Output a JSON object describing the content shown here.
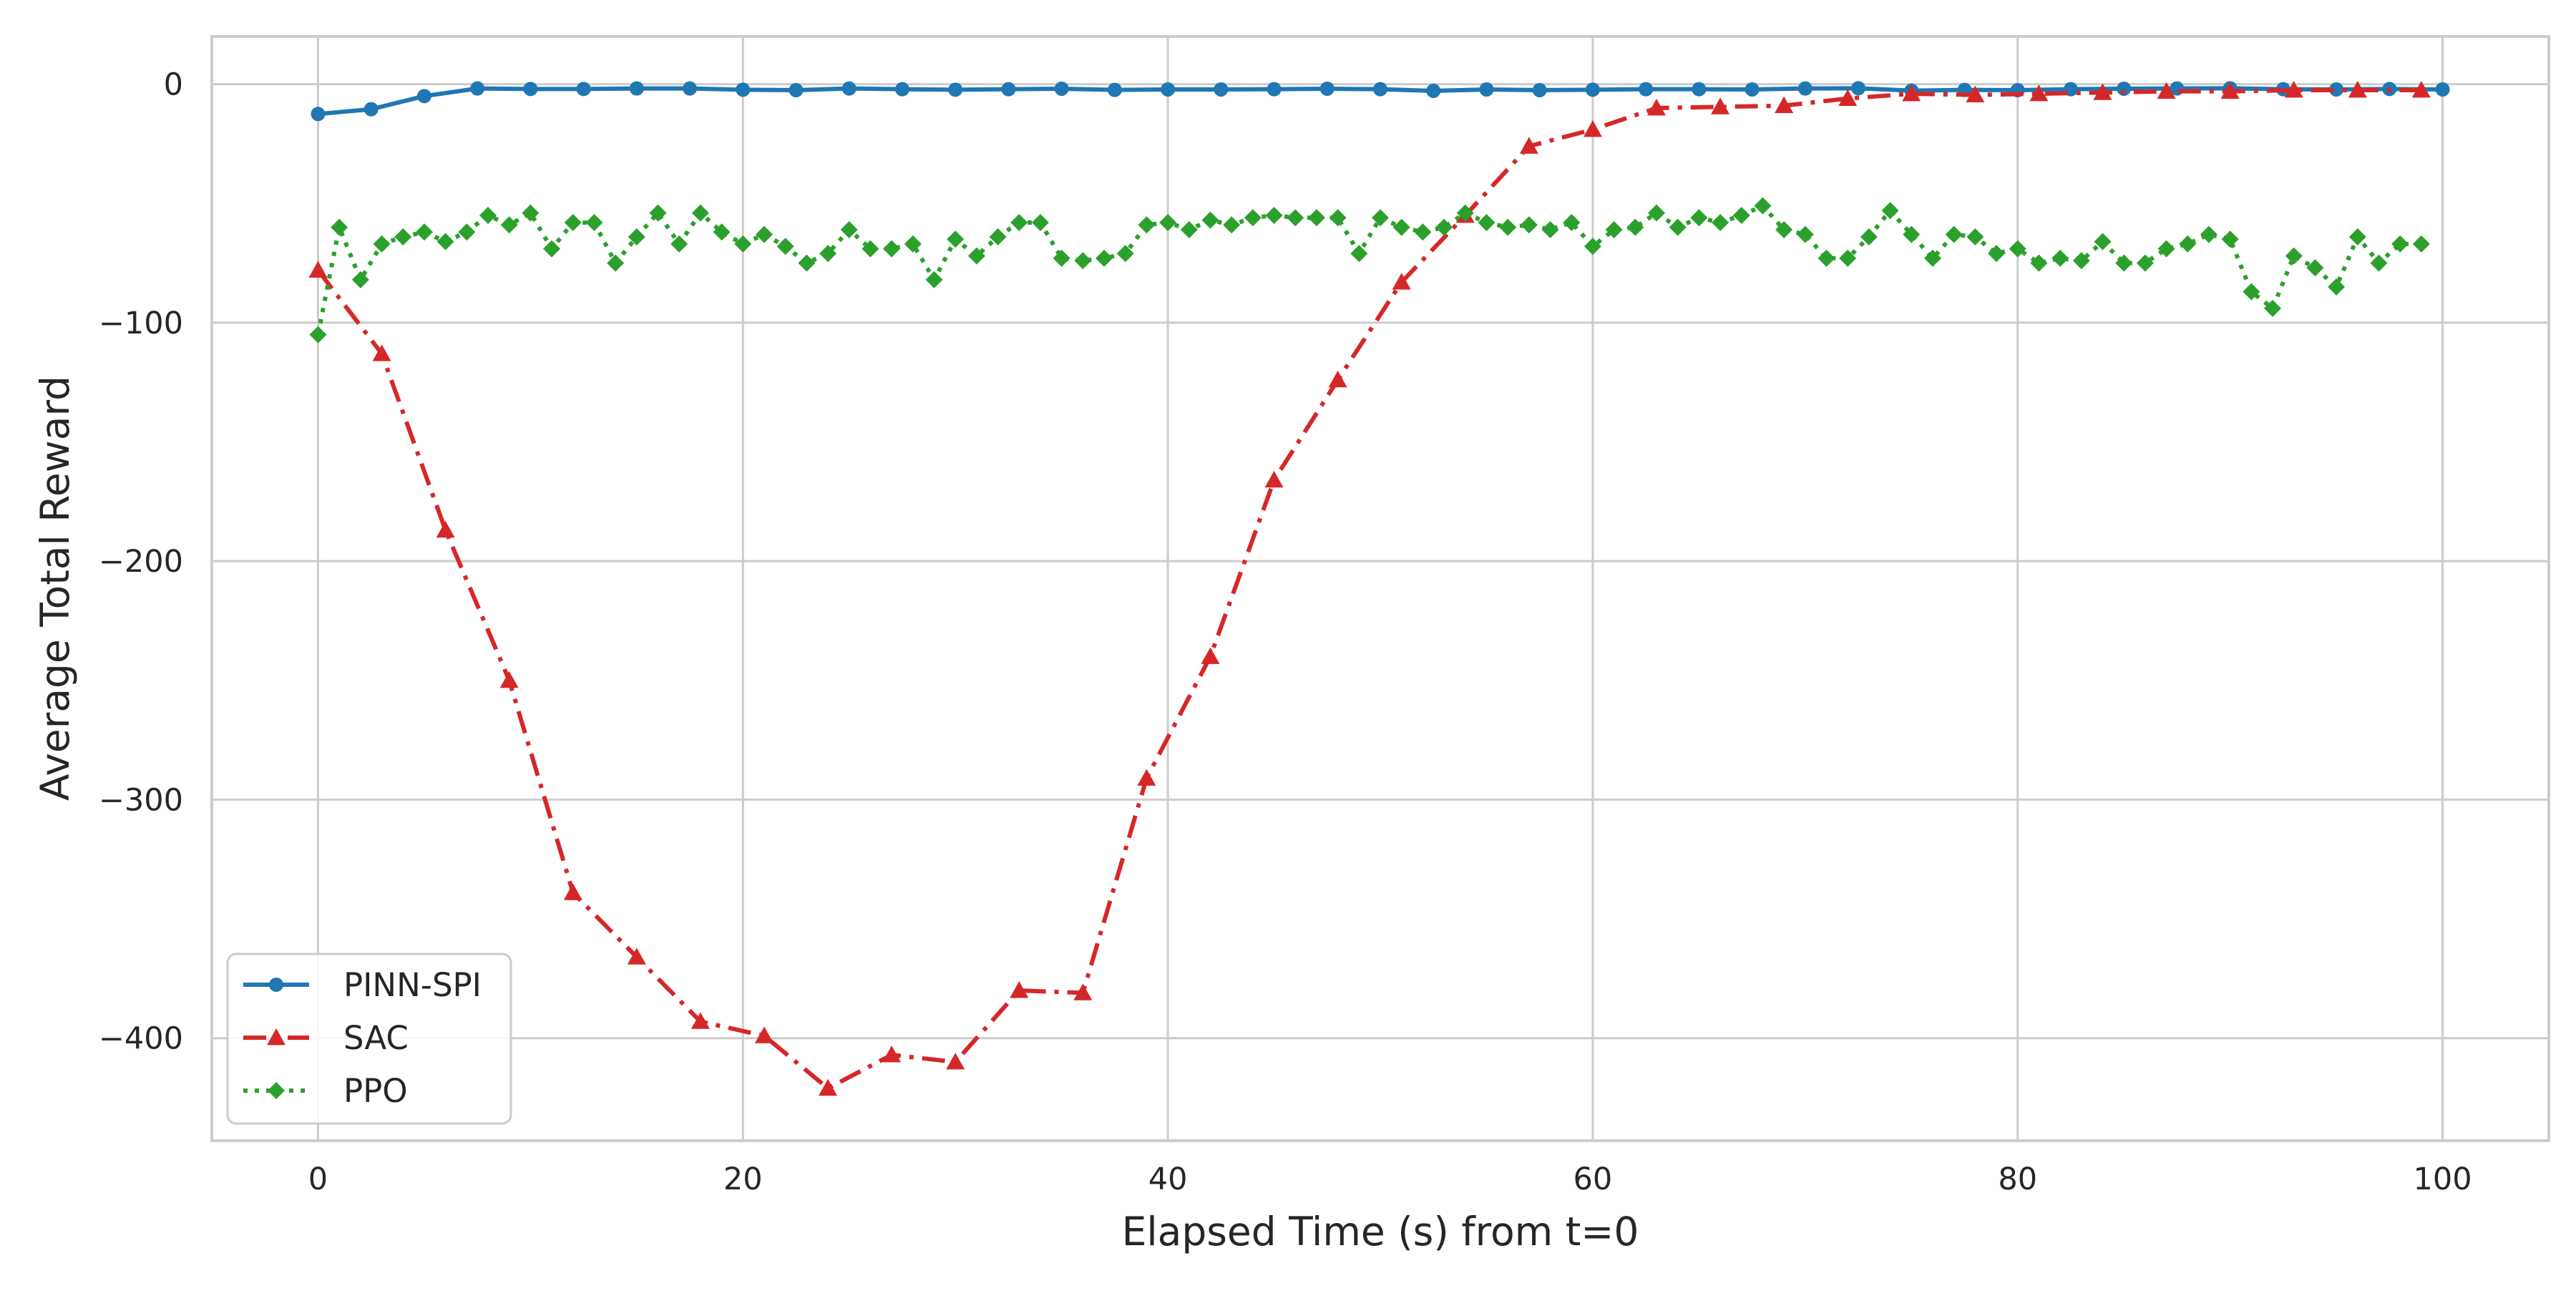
{
  "chart_data": {
    "type": "line",
    "title": "",
    "xlabel": "Elapsed Time (s) from t=0",
    "ylabel": "Average Total Reward",
    "xlim": [
      -5,
      105
    ],
    "ylim": [
      -443,
      20
    ],
    "xticks": [
      0,
      20,
      40,
      60,
      80,
      100
    ],
    "yticks": [
      0,
      -100,
      -200,
      -300,
      -400
    ],
    "xtick_labels": [
      "0",
      "20",
      "40",
      "60",
      "80",
      "100"
    ],
    "ytick_labels": [
      "0",
      "−100",
      "−200",
      "−300",
      "−400"
    ],
    "grid": true,
    "legend_position": "bottom-left",
    "series": [
      {
        "name": "PINN-SPI",
        "color": "#1f77b4",
        "line_style": "solid",
        "marker": "circle",
        "x": [
          0,
          2.5,
          5,
          7.5,
          10,
          12.5,
          15,
          17.5,
          20,
          22.5,
          25,
          27.5,
          30,
          32.5,
          35,
          37.5,
          40,
          42.5,
          45,
          47.5,
          50,
          52.5,
          55,
          57.5,
          60,
          62.5,
          65,
          67.5,
          70,
          72.5,
          75,
          77.5,
          80,
          82.5,
          85,
          87.5,
          90,
          92.5,
          95,
          97.5,
          100
        ],
        "y": [
          -12.5,
          -10.5,
          -5,
          -1.8,
          -2,
          -2,
          -1.8,
          -1.8,
          -2.3,
          -2.5,
          -1.8,
          -2.1,
          -2.3,
          -2.1,
          -1.9,
          -2.4,
          -2.2,
          -2.2,
          -2.1,
          -1.9,
          -2.1,
          -2.8,
          -2.2,
          -2.5,
          -2.3,
          -2.1,
          -2.1,
          -2.2,
          -1.8,
          -1.7,
          -2.7,
          -2.4,
          -2.5,
          -2.1,
          -1.9,
          -1.8,
          -1.7,
          -2.1,
          -2.2,
          -2,
          -2.2
        ]
      },
      {
        "name": "SAC",
        "color": "#d62728",
        "line_style": "dashdot",
        "marker": "triangle",
        "x": [
          0,
          3,
          6,
          9,
          12,
          15,
          18,
          21,
          24,
          27,
          30,
          33,
          36,
          39,
          42,
          45,
          48,
          51,
          54,
          57,
          60,
          63,
          66,
          69,
          72,
          75,
          78,
          81,
          84,
          87,
          90,
          93,
          96,
          99
        ],
        "y": [
          -78,
          -113,
          -187,
          -250,
          -339,
          -366,
          -393,
          -399,
          -421,
          -407,
          -410,
          -380,
          -381,
          -291,
          -240,
          -166,
          -124,
          -83,
          -55,
          -26,
          -19,
          -10,
          -9.5,
          -9,
          -6,
          -4,
          -4.5,
          -4,
          -3.5,
          -3,
          -3,
          -2.5,
          -2.5,
          -2.5
        ]
      },
      {
        "name": "PPO",
        "color": "#2ca02c",
        "line_style": "dotted",
        "marker": "diamond",
        "x": [
          0,
          1,
          2,
          3,
          4,
          5,
          6,
          7,
          8,
          9,
          10,
          11,
          12,
          13,
          14,
          15,
          16,
          17,
          18,
          19,
          20,
          21,
          22,
          23,
          24,
          25,
          26,
          27,
          28,
          29,
          30,
          31,
          32,
          33,
          34,
          35,
          36,
          37,
          38,
          39,
          40,
          41,
          42,
          43,
          44,
          45,
          46,
          47,
          48,
          49,
          50,
          51,
          52,
          53,
          54,
          55,
          56,
          57,
          58,
          59,
          60,
          61,
          62,
          63,
          64,
          65,
          66,
          67,
          68,
          69,
          70,
          71,
          72,
          73,
          74,
          75,
          76,
          77,
          78,
          79,
          80,
          81,
          82,
          83,
          84,
          85,
          86,
          87,
          88,
          89,
          90,
          91,
          92,
          93,
          94,
          95,
          96,
          97,
          98,
          99
        ],
        "y": [
          -105,
          -60,
          -82,
          -67,
          -64,
          -62,
          -66,
          -62,
          -55,
          -59,
          -54,
          -69,
          -58,
          -58,
          -75,
          -64,
          -54,
          -67,
          -54,
          -62,
          -67,
          -63,
          -68,
          -75,
          -71,
          -61,
          -69,
          -69,
          -67,
          -82,
          -65,
          -72,
          -64,
          -58,
          -58,
          -73,
          -74,
          -73,
          -71,
          -59,
          -58,
          -61,
          -57,
          -59,
          -56,
          -55,
          -56,
          -56,
          -56,
          -71,
          -56,
          -60,
          -62,
          -60,
          -54,
          -58,
          -60,
          -59,
          -61,
          -58,
          -68,
          -61,
          -60,
          -54,
          -60,
          -56,
          -58,
          -55,
          -51,
          -61,
          -63,
          -73,
          -73,
          -64,
          -53,
          -63,
          -73,
          -63,
          -64,
          -71,
          -69,
          -75,
          -73,
          -74,
          -66,
          -75,
          -75,
          -69,
          -67,
          -63,
          -65,
          -87,
          -94,
          -72,
          -77,
          -85,
          -64,
          -75,
          -67,
          -67
        ]
      }
    ]
  }
}
